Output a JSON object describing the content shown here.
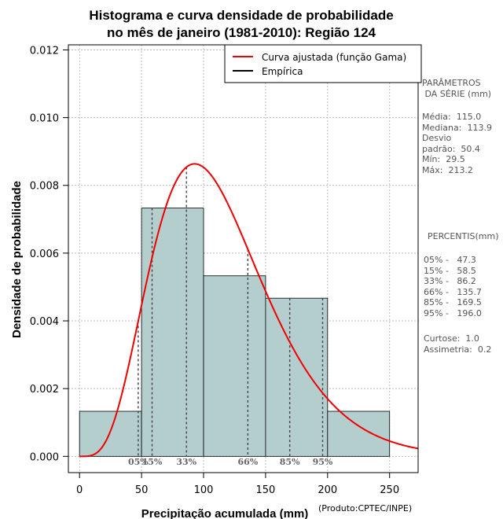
{
  "chart_data": {
    "type": "bar",
    "title_lines": [
      "Histograma e curva densidade de probabilidade",
      "no mês de janeiro (1981-2010): Região 124"
    ],
    "xlabel": "Precipitação acumulada (mm)",
    "ylabel": "Densidade de probabilidade",
    "xlim": [
      -9,
      273
    ],
    "ylim": [
      -0.00048,
      0.01215
    ],
    "x_ticks": [
      0,
      50,
      100,
      150,
      200,
      250
    ],
    "y_ticks": [
      0.0,
      0.002,
      0.004,
      0.006,
      0.008,
      0.01,
      0.012
    ],
    "y_tick_labels": [
      "0.000",
      "0.002",
      "0.004",
      "0.006",
      "0.008",
      "0.010",
      "0.012"
    ],
    "bins": [
      {
        "x0": 0,
        "x1": 50,
        "density": 0.00133
      },
      {
        "x0": 50,
        "x1": 100,
        "density": 0.00733
      },
      {
        "x0": 100,
        "x1": 150,
        "density": 0.00533
      },
      {
        "x0": 150,
        "x1": 200,
        "density": 0.00467
      },
      {
        "x0": 200,
        "x1": 250,
        "density": 0.00133
      }
    ],
    "gamma_fit": {
      "name": "Curva ajustada (função Gama)",
      "shape": 5.2,
      "scale": 22.1,
      "color": "#ee0000"
    },
    "legend": [
      {
        "label": "Curva ajustada (função Gama)",
        "color": "#ee0000"
      },
      {
        "label": "Empírica",
        "color": "#000000"
      }
    ],
    "percentile_lines": [
      {
        "label": "05%",
        "x": 47.3
      },
      {
        "label": "15%",
        "x": 58.5
      },
      {
        "label": "33%",
        "x": 86.2
      },
      {
        "label": "66%",
        "x": 135.7
      },
      {
        "label": "85%",
        "x": 169.5
      },
      {
        "label": "95%",
        "x": 196.0
      }
    ],
    "bar_color": "#b4cece",
    "grid": true
  },
  "side_panel": {
    "params_title": "PARÂMETROS\n DA SÉRIE (mm)",
    "params": "Média:  115.0\nMediana:  113.9\nDesvio\npadrão:  50.4\nMín:  29.5\nMáx:  213.2",
    "percentis_title": "PERCENTIS(mm)",
    "percentis": "05% -   47.3\n15% -   58.5\n33% -   86.2\n66% -   135.7\n85% -   169.5\n95% -   196.0",
    "stats": "Curtose:  1.0\nAssimetria:  0.2"
  },
  "credit": "(Produto:CPTEC/INPE)"
}
